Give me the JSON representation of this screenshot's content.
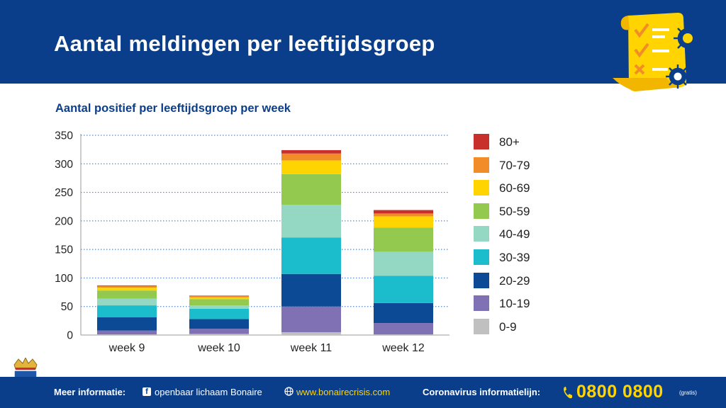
{
  "header": {
    "title": "Aantal meldingen per leeftijdsgroep"
  },
  "chart_data": {
    "type": "bar",
    "stacked": true,
    "title": "Aantal positief per leeftijdsgroep per week",
    "categories": [
      "week 9",
      "week 10",
      "week 11",
      "week 12"
    ],
    "ylim": [
      0,
      350
    ],
    "yticks": [
      0,
      50,
      100,
      150,
      200,
      250,
      300,
      350
    ],
    "grid": true,
    "legend_position": "right",
    "series": [
      {
        "name": "0-9",
        "color": "#c0c0c0",
        "values": [
          1,
          2,
          5,
          1
        ]
      },
      {
        "name": "10-19",
        "color": "#8070b4",
        "values": [
          7,
          9,
          45,
          20
        ]
      },
      {
        "name": "20-29",
        "color": "#0d4a96",
        "values": [
          23,
          17,
          57,
          35
        ]
      },
      {
        "name": "30-39",
        "color": "#1bbccb",
        "values": [
          21,
          18,
          64,
          48
        ]
      },
      {
        "name": "40-49",
        "color": "#94d7c3",
        "values": [
          12,
          6,
          57,
          42
        ]
      },
      {
        "name": "50-59",
        "color": "#92c94e",
        "values": [
          14,
          11,
          54,
          42
        ]
      },
      {
        "name": "60-69",
        "color": "#ffd400",
        "values": [
          5,
          3,
          24,
          20
        ]
      },
      {
        "name": "70-79",
        "color": "#f28c28",
        "values": [
          3,
          2,
          12,
          5
        ]
      },
      {
        "name": "80+",
        "color": "#c8302c",
        "values": [
          1,
          1,
          6,
          6
        ]
      }
    ]
  },
  "footer": {
    "meer_label": "Meer informatie:",
    "facebook_text": "openbaar lichaam Bonaire",
    "website_text": "www.bonairecrisis.com",
    "corona_label": "Coronavirus informatielijn:",
    "phone": "0800 0800",
    "gratis": "(gratis)"
  }
}
